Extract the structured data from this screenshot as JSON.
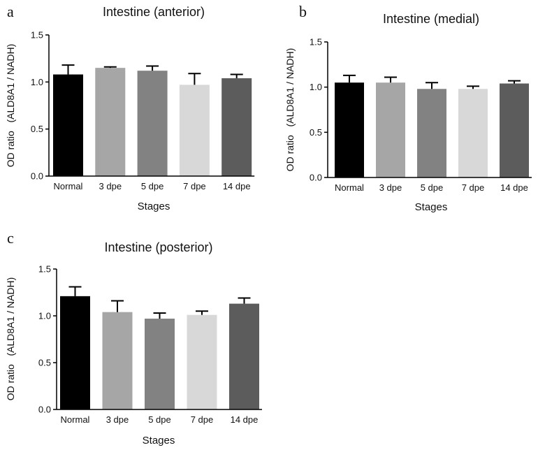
{
  "chart_data": [
    {
      "panel": "a",
      "type": "bar",
      "title": "Intestine (anterior)",
      "xlabel": "Stages",
      "ylabel": "OD ratio   (ALD8A1 / NADH)",
      "categories": [
        "Normal",
        "3 dpe",
        "5 dpe",
        "7 dpe",
        "14 dpe"
      ],
      "values": [
        1.08,
        1.15,
        1.12,
        0.97,
        1.04
      ],
      "errors": [
        0.1,
        0.01,
        0.05,
        0.12,
        0.04
      ],
      "yticks": [
        "0.0",
        "0.5",
        "1.0",
        "1.5"
      ],
      "ylim": [
        0,
        1.5
      ],
      "colors": [
        "#000000",
        "#a6a6a6",
        "#828282",
        "#d8d8d8",
        "#5c5c5c"
      ],
      "grid": false
    },
    {
      "panel": "b",
      "type": "bar",
      "title": "Intestine (medial)",
      "xlabel": "Stages",
      "ylabel": "OD ratio   (ALD8A1 / NADH)",
      "categories": [
        "Normal",
        "3 dpe",
        "5 dpe",
        "7 dpe",
        "14 dpe"
      ],
      "values": [
        1.05,
        1.05,
        0.98,
        0.98,
        1.04
      ],
      "errors": [
        0.08,
        0.06,
        0.07,
        0.03,
        0.03
      ],
      "yticks": [
        "0.0",
        "0.5",
        "1.0",
        "1.5"
      ],
      "ylim": [
        0,
        1.5
      ],
      "colors": [
        "#000000",
        "#a6a6a6",
        "#828282",
        "#d8d8d8",
        "#5c5c5c"
      ],
      "grid": false
    },
    {
      "panel": "c",
      "type": "bar",
      "title": "Intestine (posterior)",
      "xlabel": "Stages",
      "ylabel": "OD ratio   (ALD8A1 / NADH)",
      "categories": [
        "Normal",
        "3 dpe",
        "5 dpe",
        "7 dpe",
        "14 dpe"
      ],
      "values": [
        1.21,
        1.04,
        0.97,
        1.01,
        1.13
      ],
      "errors": [
        0.1,
        0.12,
        0.06,
        0.04,
        0.06
      ],
      "yticks": [
        "0.0",
        "0.5",
        "1.0",
        "1.5"
      ],
      "ylim": [
        0,
        1.5
      ],
      "colors": [
        "#000000",
        "#a6a6a6",
        "#828282",
        "#d8d8d8",
        "#5c5c5c"
      ],
      "grid": false
    }
  ]
}
